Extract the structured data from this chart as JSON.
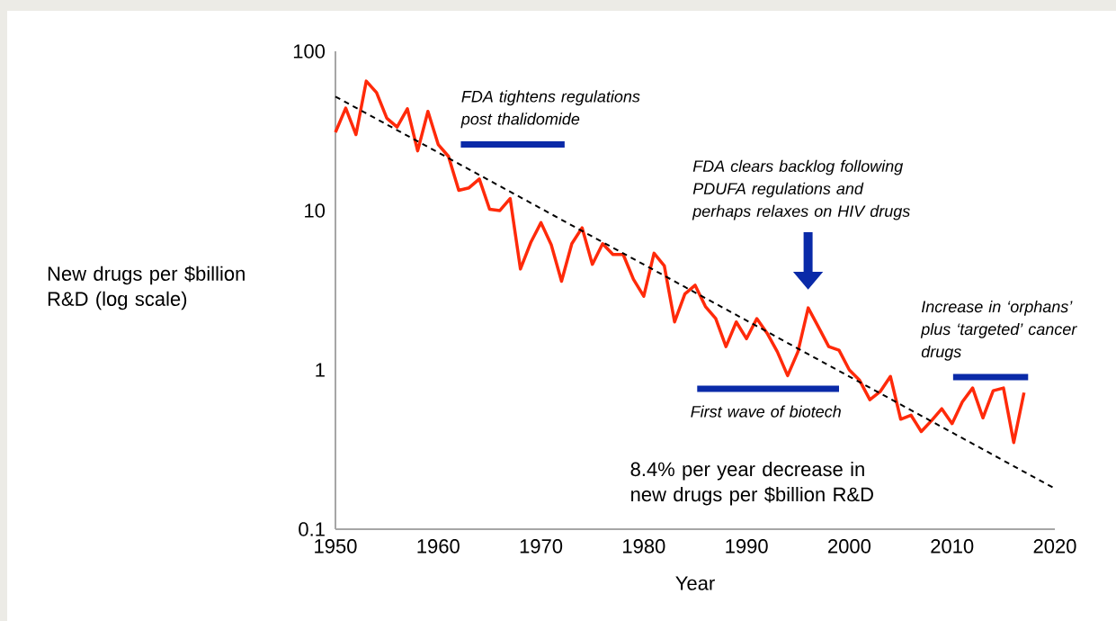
{
  "chart_data": {
    "type": "line",
    "xlabel": "Year",
    "ylabel": "New drugs per $billion R&D (log scale)",
    "log": "y",
    "xlim": [
      1950,
      2020
    ],
    "ylim": [
      0.1,
      100
    ],
    "xticks": [
      1950,
      1960,
      1970,
      1980,
      1990,
      2000,
      2010,
      2020
    ],
    "yticks": [
      0.1,
      1,
      10,
      100
    ],
    "marker": "none",
    "series": [
      {
        "color": "#ff2a0a",
        "x": [
          1950,
          1951,
          1952,
          1953,
          1954,
          1955,
          1956,
          1957,
          1958,
          1959,
          1960,
          1961,
          1962,
          1963,
          1964,
          1965,
          1966,
          1967,
          1968,
          1969,
          1970,
          1971,
          1972,
          1973,
          1974,
          1975,
          1976,
          1977,
          1978,
          1979,
          1980,
          1981,
          1982,
          1983,
          1984,
          1985,
          1986,
          1987,
          1988,
          1989,
          1990,
          1991,
          1992,
          1993,
          1994,
          1995,
          1996,
          1997,
          1998,
          1999,
          2000,
          2001,
          2002,
          2003,
          2004,
          2005,
          2006,
          2007,
          2008,
          2009,
          2010,
          2011,
          2012,
          2013,
          2014,
          2015,
          2016,
          2017
        ],
        "values": [
          31,
          44,
          30,
          65,
          55,
          38,
          33.5,
          43.6,
          23.7,
          42,
          26,
          21.9,
          13.4,
          13.9,
          15.8,
          10.2,
          10,
          11.9,
          4.3,
          6.3,
          8.4,
          6.1,
          3.6,
          6.2,
          7.8,
          4.6,
          6.2,
          5.3,
          5.3,
          3.7,
          2.9,
          5.4,
          4.5,
          2.0,
          3.0,
          3.4,
          2.5,
          2.1,
          1.4,
          2.0,
          1.57,
          2.1,
          1.7,
          1.3,
          0.92,
          1.3,
          2.45,
          1.86,
          1.4,
          1.33,
          1.0,
          0.86,
          0.65,
          0.73,
          0.91,
          0.49,
          0.52,
          0.41,
          0.48,
          0.57,
          0.46,
          0.63,
          0.77,
          0.5,
          0.74,
          0.77,
          0.35,
          0.72
        ]
      },
      {
        "color": "#000000",
        "line_style": "dashed",
        "x": [
          1950,
          2020
        ],
        "values": [
          52,
          0.18
        ]
      },
      {
        "color": "#0a2aa8",
        "x": [
          1962.2,
          1972.3
        ],
        "values": [
          26,
          26
        ]
      },
      {
        "color": "#0a2aa8",
        "x": [
          1985.2,
          1999
        ],
        "values": [
          0.76,
          0.76
        ]
      },
      {
        "color": "#0a2aa8",
        "x": [
          2010.1,
          2017.4
        ],
        "values": [
          0.9,
          0.9
        ]
      }
    ],
    "annotations": [
      {
        "text": "FDA tightens regulations post thalidomide",
        "x": 1962.2,
        "y": 26
      },
      "FDA clears backlog following PDUFA regulations and perhaps relaxes on HIV drugs",
      {
        "text": "First wave of biotech",
        "x": 1985.2,
        "y": 0.76
      },
      {
        "text": "Increase in ‘orphans’ plus ‘targeted’ cancer drugs",
        "x": 2010.1,
        "y": 0.9
      },
      "8.4% per year decrease in new drugs per $billion R&D"
    ]
  }
}
